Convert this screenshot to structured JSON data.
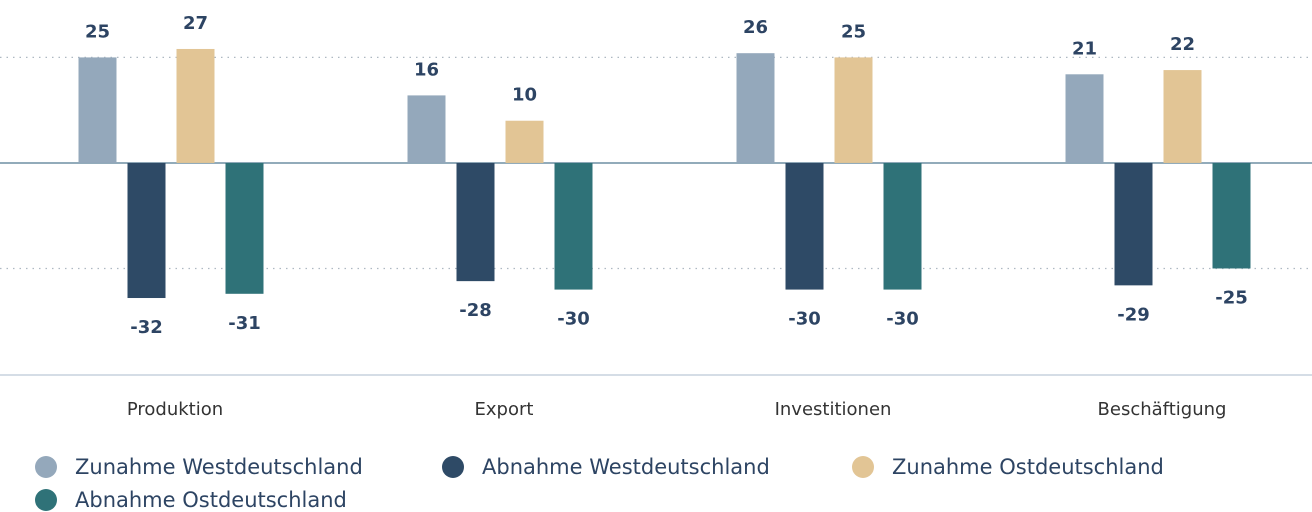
{
  "chart_data": {
    "type": "bar",
    "categories": [
      "Produktion",
      "Export",
      "Investitionen",
      "Beschäftigung"
    ],
    "series": [
      {
        "name": "Zunahme Westdeutschland",
        "color": "#94a8bb",
        "values": [
          25,
          16,
          26,
          21
        ]
      },
      {
        "name": "Abnahme Westdeutschland",
        "color": "#2e4a66",
        "values": [
          -32,
          -28,
          -30,
          -29
        ]
      },
      {
        "name": "Zunahme Ostdeutschland",
        "color": "#e2c595",
        "values": [
          27,
          10,
          25,
          22
        ]
      },
      {
        "name": "Abnahme Ostdeutschland",
        "color": "#2f7278",
        "values": [
          -31,
          -30,
          -30,
          -25
        ]
      }
    ],
    "ylim": [
      -50,
      38.6
    ],
    "yticks": [
      -25,
      0,
      25
    ],
    "grid": true
  }
}
